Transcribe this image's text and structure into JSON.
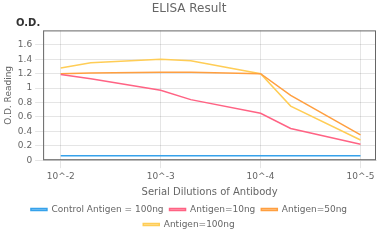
{
  "chart_data": {
    "type": "line",
    "title": "ELISA Result",
    "xlabel": "Serial Dilutions of Antibody",
    "ylabel": "O.D. Reading",
    "annotations": [
      "O.D."
    ],
    "log": "x",
    "xlim": [
      0.015,
      7e-06
    ],
    "xticks": [
      {
        "value": 0.01,
        "label": "10^-2"
      },
      {
        "value": 0.001,
        "label": "10^-3"
      },
      {
        "value": 0.0001,
        "label": "10^-4"
      },
      {
        "value": 1e-05,
        "label": "10^-5"
      }
    ],
    "ylim": [
      0,
      1.8
    ],
    "yticks": [
      0,
      0.2,
      0.4,
      0.6,
      0.8,
      1.0,
      1.2,
      1.4,
      1.6
    ],
    "grid": true,
    "legend": "bottom",
    "series": [
      {
        "name": "Control Antigen = 100ng",
        "x": [
          0.01,
          0.001,
          0.0001,
          1e-05
        ],
        "values": [
          0.06,
          0.06,
          0.06,
          0.06
        ]
      },
      {
        "name": "Antigen=10ng",
        "x": [
          0.01,
          0.005,
          0.001,
          0.0005,
          0.0001,
          5e-05,
          1e-05
        ],
        "values": [
          1.19,
          1.13,
          0.97,
          0.84,
          0.65,
          0.44,
          0.22
        ]
      },
      {
        "name": "Antigen=50ng",
        "x": [
          0.01,
          0.005,
          0.001,
          0.0005,
          0.0001,
          5e-05,
          1e-05
        ],
        "values": [
          1.2,
          1.21,
          1.22,
          1.22,
          1.2,
          0.9,
          0.35
        ]
      },
      {
        "name": "Antigen=100ng",
        "x": [
          0.01,
          0.005,
          0.001,
          0.0005,
          0.0001,
          5e-05,
          1e-05
        ],
        "values": [
          1.28,
          1.35,
          1.4,
          1.38,
          1.2,
          0.75,
          0.28
        ]
      }
    ]
  }
}
